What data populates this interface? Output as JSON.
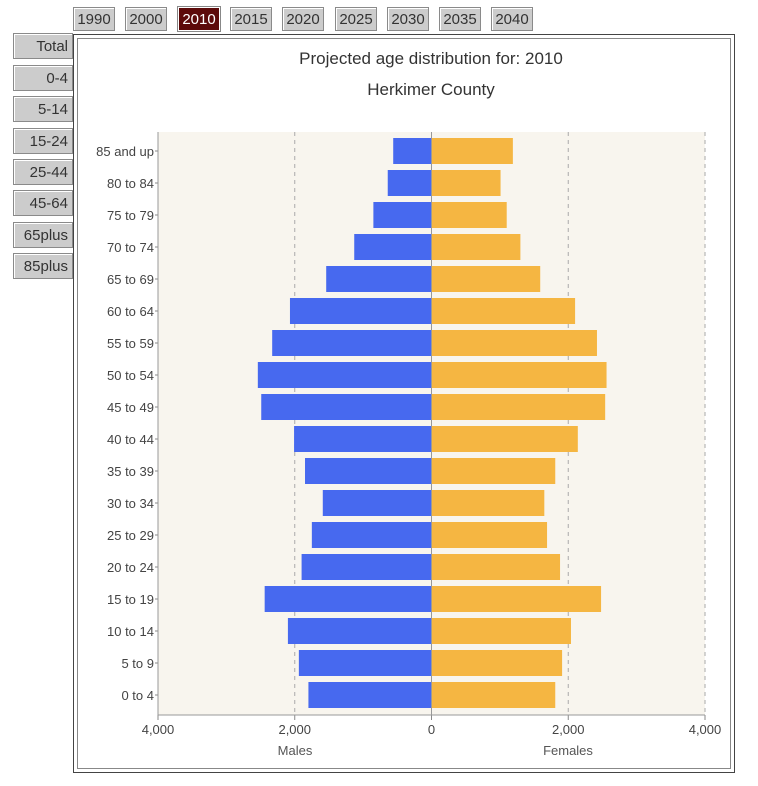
{
  "year_tabs": [
    "1990",
    "2000",
    "2010",
    "2015",
    "2020",
    "2025",
    "2030",
    "2035",
    "2040"
  ],
  "active_year": "2010",
  "age_buttons": [
    "Total",
    "0-4",
    "5-14",
    "15-24",
    "25-44",
    "45-64",
    "65plus",
    "85plus"
  ],
  "colors": {
    "males": "#4769ef",
    "females": "#f5b642",
    "plot_bg": "#f8f5ee",
    "active_tab": "#5c0a0a"
  },
  "chart_data": {
    "type": "bar",
    "orientation": "horizontal-population-pyramid",
    "title": "Projected age distribution for: 2010",
    "subtitle": "Herkimer County",
    "categories": [
      "85 and up",
      "80 to 84",
      "75 to 79",
      "70 to 74",
      "65 to 69",
      "60 to 64",
      "55 to 59",
      "50 to 54",
      "45 to 49",
      "40 to 44",
      "35 to 39",
      "30 to 34",
      "25 to 29",
      "20 to 24",
      "15 to 19",
      "10 to 14",
      "5 to 9",
      "0 to 4"
    ],
    "series": [
      {
        "name": "Males",
        "values": [
          560,
          640,
          850,
          1130,
          1540,
          2070,
          2330,
          2540,
          2490,
          2010,
          1850,
          1590,
          1750,
          1900,
          2440,
          2100,
          1940,
          1800
        ]
      },
      {
        "name": "Females",
        "values": [
          1190,
          1010,
          1100,
          1300,
          1590,
          2100,
          2420,
          2560,
          2540,
          2140,
          1810,
          1650,
          1690,
          1880,
          2480,
          2040,
          1910,
          1810
        ]
      }
    ],
    "xlim": [
      -4000,
      4000
    ],
    "x_ticks": [
      "4,000",
      "2,000",
      "0",
      "2,000",
      "4,000"
    ],
    "x_tick_values": [
      -4000,
      -2000,
      0,
      2000,
      4000
    ],
    "xlabel_left": "Males",
    "xlabel_right": "Females",
    "grid": "vertical dashed"
  }
}
